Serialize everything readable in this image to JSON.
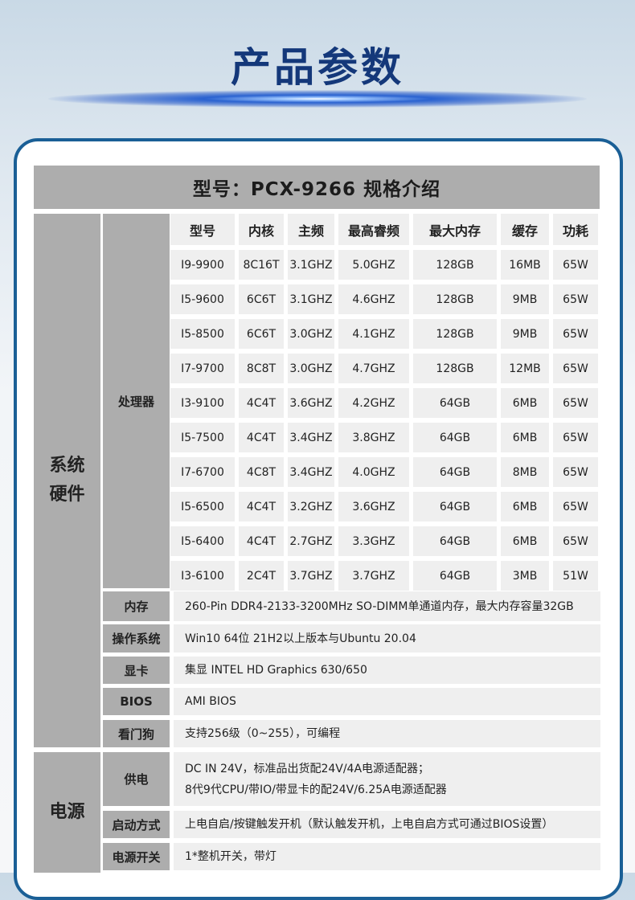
{
  "page_title": "产品参数",
  "table_title": "型号：PCX-9266 规格介绍",
  "sections": {
    "hardware": "系统\n硬件",
    "power": "电源"
  },
  "cpu": {
    "label": "处理器",
    "headers": [
      "型号",
      "内核",
      "主频",
      "最高睿频",
      "最大内存",
      "缓存",
      "功耗"
    ],
    "rows": [
      [
        "I9-9900",
        "8C16T",
        "3.1GHZ",
        "5.0GHZ",
        "128GB",
        "16MB",
        "65W"
      ],
      [
        "I5-9600",
        "6C6T",
        "3.1GHZ",
        "4.6GHZ",
        "128GB",
        "9MB",
        "65W"
      ],
      [
        "I5-8500",
        "6C6T",
        "3.0GHZ",
        "4.1GHZ",
        "128GB",
        "9MB",
        "65W"
      ],
      [
        "I7-9700",
        "8C8T",
        "3.0GHZ",
        "4.7GHZ",
        "128GB",
        "12MB",
        "65W"
      ],
      [
        "I3-9100",
        "4C4T",
        "3.6GHZ",
        "4.2GHZ",
        "64GB",
        "6MB",
        "65W"
      ],
      [
        "I5-7500",
        "4C4T",
        "3.4GHZ",
        "3.8GHZ",
        "64GB",
        "6MB",
        "65W"
      ],
      [
        "I7-6700",
        "4C8T",
        "3.4GHZ",
        "4.0GHZ",
        "64GB",
        "8MB",
        "65W"
      ],
      [
        "I5-6500",
        "4C4T",
        "3.2GHZ",
        "3.6GHZ",
        "64GB",
        "6MB",
        "65W"
      ],
      [
        "I5-6400",
        "4C4T",
        "2.7GHZ",
        "3.3GHZ",
        "64GB",
        "6MB",
        "65W"
      ],
      [
        "I3-6100",
        "2C4T",
        "3.7GHZ",
        "3.7GHZ",
        "64GB",
        "3MB",
        "51W"
      ]
    ]
  },
  "hardware_specs": [
    {
      "label": "内存",
      "value": "260-Pin DDR4-2133-3200MHz SO-DIMM单通道内存，最大内存容量32GB"
    },
    {
      "label": "操作系统",
      "value": "Win10 64位 21H2以上版本与Ubuntu 20.04"
    },
    {
      "label": "显卡",
      "value": "集显 INTEL HD Graphics 630/650"
    },
    {
      "label": "BIOS",
      "value": "AMI BIOS"
    },
    {
      "label": "看门狗",
      "value": "支持256级（0~255），可编程"
    }
  ],
  "power_specs": [
    {
      "label": "供电",
      "value": "DC IN 24V，标准品出货配24V/4A电源适配器；\n8代9代CPU/带IO/带显卡的配24V/6.25A电源适配器"
    },
    {
      "label": "启动方式",
      "value": "上电自启/按键触发开机（默认触发开机，上电自启方式可通过BIOS设置）"
    },
    {
      "label": "电源开关",
      "value": "1*整机开关，带灯"
    }
  ]
}
